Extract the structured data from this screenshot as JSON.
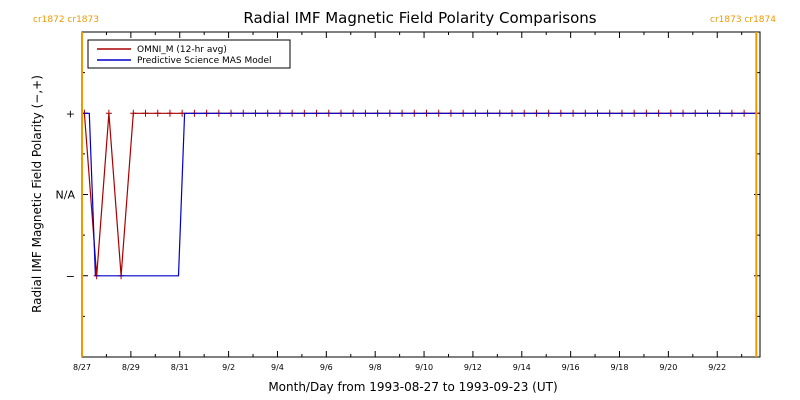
{
  "chart_data": {
    "type": "line",
    "title": "Radial IMF Magnetic Field Polarity Comparisons",
    "xlabel": "Month/Day from 1993-08-27 to 1993-09-23 (UT)",
    "ylabel": "Radial IMF Magnetic Field Polarity (−,+)",
    "xlim": [
      0,
      27.75
    ],
    "ylim": [
      -3,
      3
    ],
    "x_ticks": [
      {
        "x": 0,
        "label": "8/27"
      },
      {
        "x": 2,
        "label": "8/29"
      },
      {
        "x": 4,
        "label": "8/31"
      },
      {
        "x": 6,
        "label": "9/2"
      },
      {
        "x": 8,
        "label": "9/4"
      },
      {
        "x": 10,
        "label": "9/6"
      },
      {
        "x": 12,
        "label": "9/8"
      },
      {
        "x": 14,
        "label": "9/10"
      },
      {
        "x": 16,
        "label": "9/12"
      },
      {
        "x": 18,
        "label": "9/14"
      },
      {
        "x": 20,
        "label": "9/16"
      },
      {
        "x": 22,
        "label": "9/18"
      },
      {
        "x": 24,
        "label": "9/20"
      },
      {
        "x": 26,
        "label": "9/22"
      }
    ],
    "y_ticks": [
      {
        "y": 1.5,
        "label": "+"
      },
      {
        "y": 0,
        "label": "N/A"
      },
      {
        "y": -1.5,
        "label": "−"
      }
    ],
    "legend": "top-left",
    "series": [
      {
        "name": "OMNI_M (12-hr avg)",
        "color": "#aa0000",
        "marker": "plus",
        "points": [
          [
            0.1,
            1.5
          ],
          [
            0.6,
            -1.5
          ],
          [
            1.1,
            1.5
          ],
          [
            1.6,
            -1.5
          ],
          [
            2.1,
            1.5
          ],
          [
            2.6,
            1.5
          ],
          [
            3.1,
            1.5
          ],
          [
            3.6,
            1.5
          ],
          [
            4.1,
            1.5
          ],
          [
            4.6,
            1.5
          ],
          [
            5.1,
            1.5
          ],
          [
            5.6,
            1.5
          ],
          [
            6.1,
            1.5
          ],
          [
            6.6,
            1.5
          ],
          [
            7.1,
            1.5
          ],
          [
            7.6,
            1.5
          ],
          [
            8.1,
            1.5
          ],
          [
            8.6,
            1.5
          ],
          [
            9.1,
            1.5
          ],
          [
            9.6,
            1.5
          ],
          [
            10.1,
            1.5
          ],
          [
            10.6,
            1.5
          ],
          [
            11.1,
            1.5
          ],
          [
            11.6,
            1.5
          ],
          [
            12.1,
            1.5
          ],
          [
            12.6,
            1.5
          ],
          [
            13.1,
            1.5
          ],
          [
            13.6,
            1.5
          ],
          [
            14.1,
            1.5
          ],
          [
            14.6,
            1.5
          ],
          [
            15.1,
            1.5
          ],
          [
            15.6,
            1.5
          ],
          [
            16.1,
            1.5
          ],
          [
            16.6,
            1.5
          ],
          [
            17.1,
            1.5
          ],
          [
            17.6,
            1.5
          ],
          [
            18.1,
            1.5
          ],
          [
            18.6,
            1.5
          ],
          [
            19.1,
            1.5
          ],
          [
            19.6,
            1.5
          ],
          [
            20.1,
            1.5
          ],
          [
            20.6,
            1.5
          ],
          [
            21.1,
            1.5
          ],
          [
            21.6,
            1.5
          ],
          [
            22.1,
            1.5
          ],
          [
            22.6,
            1.5
          ],
          [
            23.1,
            1.5
          ],
          [
            23.6,
            1.5
          ],
          [
            24.1,
            1.5
          ],
          [
            24.6,
            1.5
          ],
          [
            25.1,
            1.5
          ],
          [
            25.6,
            1.5
          ],
          [
            26.1,
            1.5
          ],
          [
            26.6,
            1.5
          ],
          [
            27.1,
            1.5
          ],
          [
            27.6,
            1.5
          ]
        ]
      },
      {
        "name": "Predictive Science MAS Model",
        "color": "#0000cc",
        "marker": "none",
        "points": [
          [
            0.0,
            1.5
          ],
          [
            0.3,
            1.5
          ],
          [
            0.55,
            -1.5
          ],
          [
            3.95,
            -1.5
          ],
          [
            4.2,
            1.5
          ],
          [
            27.6,
            1.5
          ]
        ]
      }
    ],
    "carrington_markers": [
      {
        "x": 0.0,
        "label": "cr1872 cr1873",
        "color": "#ee9900"
      },
      {
        "x": 27.6,
        "label": "cr1873 cr1874",
        "color": "#ee9900"
      }
    ]
  }
}
